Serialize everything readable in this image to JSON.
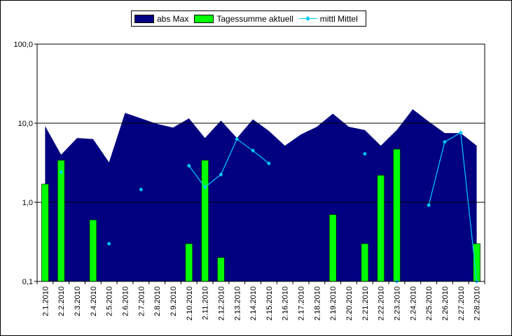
{
  "chart_data": {
    "type": "bar",
    "y_scale": "log",
    "ylim": [
      0.1,
      100
    ],
    "y_ticks": [
      "0,1",
      "1,0",
      "10,0",
      "100,0"
    ],
    "grid": "horizontal major lines",
    "legend_position": "top",
    "categories": [
      "2.1.2010",
      "2.2.2010",
      "2.3.2010",
      "2.4.2010",
      "2.5.2010",
      "2.6.2010",
      "2.7.2010",
      "2.8.2010",
      "2.9.2010",
      "2.10.2010",
      "2.11.2010",
      "2.12.2010",
      "2.13.2010",
      "2.14.2010",
      "2.15.2010",
      "2.16.2010",
      "2.17.2010",
      "2.18.2010",
      "2.19.2010",
      "2.20.2010",
      "2.21.2010",
      "2.22.2010",
      "2.23.2010",
      "2.24.2010",
      "2.25.2010",
      "2.26.2010",
      "2.27.2010",
      "2.28.2010"
    ],
    "series": [
      {
        "name": "abs Max",
        "type": "area",
        "color": "#000080",
        "values": [
          9.2,
          4.0,
          6.5,
          6.3,
          3.2,
          13.5,
          11.5,
          9.8,
          8.8,
          11.5,
          6.5,
          10.8,
          6.5,
          11.2,
          8.0,
          5.2,
          7.2,
          9.0,
          13.2,
          9.0,
          8.2,
          5.2,
          8.2,
          15.0,
          10.5,
          7.5,
          7.5,
          5.2
        ]
      },
      {
        "name": "Tagessumme aktuell",
        "type": "bar",
        "color": "#00ff00",
        "values": [
          1.7,
          3.4,
          null,
          0.6,
          null,
          null,
          null,
          null,
          null,
          0.3,
          3.4,
          0.2,
          null,
          null,
          null,
          null,
          null,
          null,
          0.7,
          null,
          0.3,
          2.2,
          4.7,
          null,
          null,
          null,
          null,
          0.3
        ]
      },
      {
        "name": "mittl Mittel",
        "type": "line",
        "color": "#00ccff",
        "values": [
          null,
          2.4,
          null,
          null,
          0.3,
          null,
          1.45,
          null,
          null,
          2.9,
          1.55,
          2.25,
          6.3,
          4.5,
          3.1,
          null,
          null,
          null,
          null,
          null,
          4.1,
          null,
          0.1,
          null,
          0.92,
          5.8,
          7.6,
          0.1
        ]
      }
    ]
  }
}
